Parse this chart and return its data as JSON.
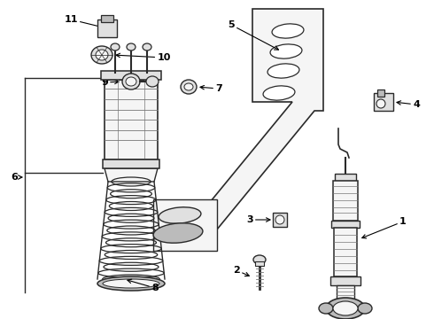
{
  "bg_color": "#ffffff",
  "line_color": "#2a2a2a",
  "mid_gray": "#777777",
  "light_fill": "#f5f5f5",
  "shade_fill": "#e0e0e0",
  "dark_fill": "#bbbbbb",
  "bracket_bg": "#dde8f0"
}
